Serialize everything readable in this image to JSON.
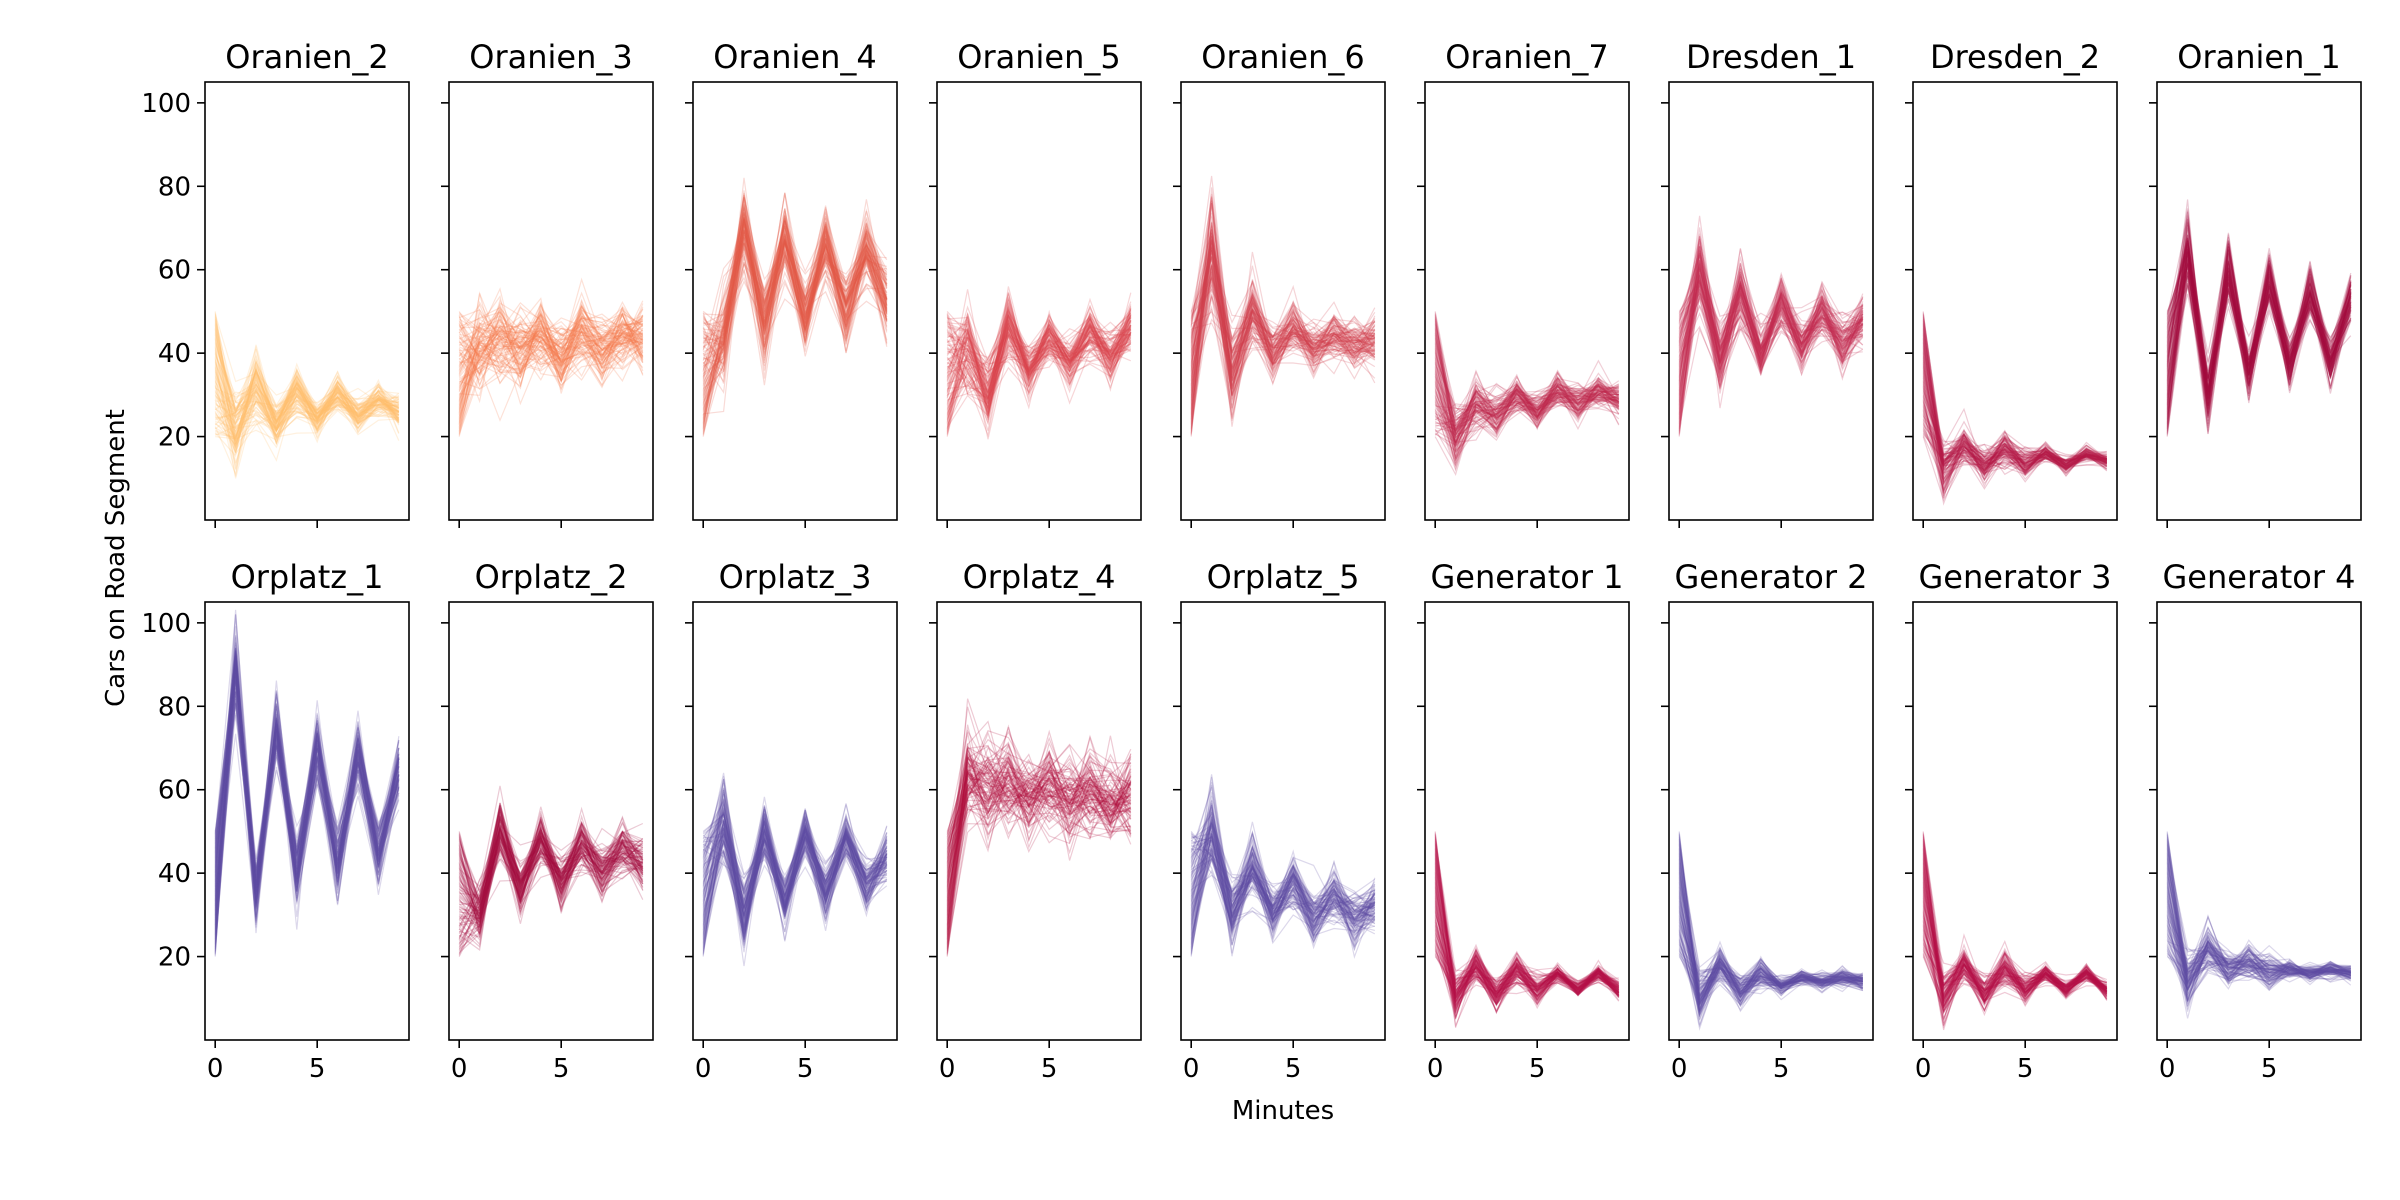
{
  "chart_data": {
    "type": "line",
    "xlabel": "Minutes",
    "ylabel": "Cars on Road Segment",
    "xlim": [
      -0.5,
      9.5
    ],
    "ylim": [
      0,
      105
    ],
    "x": [
      0,
      1,
      2,
      3,
      4,
      5,
      6,
      7,
      8,
      9
    ],
    "xticks": [
      0,
      5
    ],
    "yticks": [
      20,
      40,
      60,
      80,
      100
    ],
    "grid": false,
    "legend": "none",
    "lines_per_panel": 100,
    "panels": [
      {
        "title": "Oranien_2",
        "color": "#fdbe6e",
        "start_range": [
          20,
          50
        ],
        "series_mean": [
          35,
          21,
          32,
          23,
          31,
          24,
          30,
          25,
          29,
          26
        ],
        "spread": [
          8,
          5,
          4,
          3,
          3,
          2,
          2,
          2,
          2,
          2
        ]
      },
      {
        "title": "Oranien_3",
        "color": "#f57a4c",
        "start_range": [
          20,
          50
        ],
        "series_mean": [
          35,
          40,
          44,
          40,
          45,
          39,
          45,
          40,
          45,
          43
        ],
        "spread": [
          8,
          6,
          5,
          5,
          4,
          4,
          4,
          4,
          4,
          4
        ]
      },
      {
        "title": "Oranien_4",
        "color": "#e35a4a",
        "start_range": [
          20,
          50
        ],
        "series_mean": [
          35,
          44,
          70,
          47,
          68,
          48,
          66,
          50,
          65,
          52
        ],
        "spread": [
          8,
          6,
          5,
          5,
          4,
          4,
          4,
          4,
          4,
          4
        ]
      },
      {
        "title": "Oranien_5",
        "color": "#d9464f",
        "start_range": [
          20,
          50
        ],
        "series_mean": [
          35,
          41,
          30,
          46,
          36,
          44,
          38,
          45,
          39,
          46
        ],
        "spread": [
          8,
          5,
          4,
          4,
          3,
          3,
          3,
          3,
          3,
          3
        ]
      },
      {
        "title": "Oranien_6",
        "color": "#d1404f",
        "start_range": [
          20,
          50
        ],
        "series_mean": [
          35,
          65,
          35,
          50,
          40,
          46,
          41,
          44,
          42,
          43
        ],
        "spread": [
          8,
          7,
          5,
          4,
          3,
          3,
          3,
          3,
          3,
          3
        ]
      },
      {
        "title": "Oranien_7",
        "color": "#c0294c",
        "start_range": [
          20,
          50
        ],
        "series_mean": [
          35,
          20,
          28,
          25,
          30,
          26,
          31,
          28,
          31,
          29
        ],
        "spread": [
          8,
          4,
          3,
          3,
          2,
          2,
          2,
          2,
          2,
          2
        ]
      },
      {
        "title": "Dresden_1",
        "color": "#c22f50",
        "start_range": [
          20,
          50
        ],
        "series_mean": [
          35,
          60,
          38,
          55,
          40,
          52,
          41,
          50,
          42,
          48
        ],
        "spread": [
          8,
          5,
          4,
          4,
          3,
          3,
          3,
          3,
          3,
          3
        ]
      },
      {
        "title": "Dresden_2",
        "color": "#b81d48",
        "start_range": [
          20,
          50
        ],
        "series_mean": [
          35,
          12,
          18,
          13,
          17,
          13,
          16,
          13,
          16,
          14
        ],
        "spread": [
          8,
          3,
          2,
          2,
          2,
          2,
          1,
          1,
          1,
          1
        ]
      },
      {
        "title": "Oranien_1",
        "color": "#a60d42",
        "start_range": [
          20,
          50
        ],
        "series_mean": [
          35,
          65,
          30,
          60,
          35,
          58,
          37,
          55,
          38,
          53
        ],
        "spread": [
          8,
          5,
          4,
          4,
          3,
          3,
          3,
          3,
          3,
          3
        ]
      },
      {
        "title": "Orplatz_1",
        "color": "#5e4fa2",
        "start_range": [
          20,
          50
        ],
        "series_mean": [
          35,
          90,
          35,
          75,
          40,
          70,
          42,
          68,
          45,
          65
        ],
        "spread": [
          8,
          5,
          4,
          4,
          4,
          4,
          4,
          4,
          4,
          4
        ]
      },
      {
        "title": "Orplatz_2",
        "color": "#a60d42",
        "start_range": [
          20,
          50
        ],
        "series_mean": [
          35,
          30,
          50,
          36,
          48,
          38,
          47,
          40,
          46,
          42
        ],
        "spread": [
          8,
          4,
          4,
          3,
          3,
          3,
          3,
          3,
          3,
          3
        ]
      },
      {
        "title": "Orplatz_3",
        "color": "#5e4fa2",
        "start_range": [
          20,
          50
        ],
        "series_mean": [
          35,
          52,
          30,
          50,
          33,
          50,
          35,
          49,
          37,
          44
        ],
        "spread": [
          8,
          5,
          4,
          4,
          3,
          3,
          3,
          3,
          3,
          3
        ]
      },
      {
        "title": "Orplatz_4",
        "color": "#b0123f",
        "start_range": [
          20,
          50
        ],
        "series_mean": [
          35,
          62,
          60,
          62,
          58,
          61,
          57,
          60,
          57,
          58
        ],
        "spread": [
          8,
          6,
          6,
          5,
          5,
          5,
          5,
          5,
          5,
          5
        ]
      },
      {
        "title": "Orplatz_5",
        "color": "#5e4fa2",
        "start_range": [
          20,
          50
        ],
        "series_mean": [
          35,
          50,
          30,
          42,
          30,
          38,
          29,
          35,
          29,
          32
        ],
        "spread": [
          8,
          5,
          4,
          4,
          3,
          3,
          3,
          3,
          3,
          3
        ]
      },
      {
        "title": "Generator 1",
        "color": "#b5134a",
        "start_range": [
          20,
          50
        ],
        "series_mean": [
          35,
          10,
          18,
          11,
          17,
          12,
          16,
          12,
          16,
          12
        ],
        "spread": [
          8,
          3,
          2,
          2,
          2,
          2,
          1,
          1,
          1,
          1
        ]
      },
      {
        "title": "Generator 2",
        "color": "#5e4fa2",
        "start_range": [
          20,
          50
        ],
        "series_mean": [
          35,
          10,
          18,
          12,
          16,
          13,
          15,
          14,
          15,
          14
        ],
        "spread": [
          8,
          3,
          2,
          2,
          2,
          1,
          1,
          1,
          1,
          1
        ]
      },
      {
        "title": "Generator 3",
        "color": "#b5134a",
        "start_range": [
          20,
          50
        ],
        "series_mean": [
          35,
          10,
          18,
          11,
          17,
          12,
          16,
          12,
          16,
          12
        ],
        "spread": [
          8,
          3,
          2,
          2,
          2,
          2,
          1,
          1,
          1,
          1
        ]
      },
      {
        "title": "Generator 4",
        "color": "#5e4fa2",
        "start_range": [
          20,
          50
        ],
        "series_mean": [
          35,
          14,
          22,
          17,
          19,
          16,
          17,
          16,
          17,
          16
        ],
        "spread": [
          8,
          3,
          3,
          2,
          2,
          2,
          1,
          1,
          1,
          1
        ]
      }
    ]
  }
}
